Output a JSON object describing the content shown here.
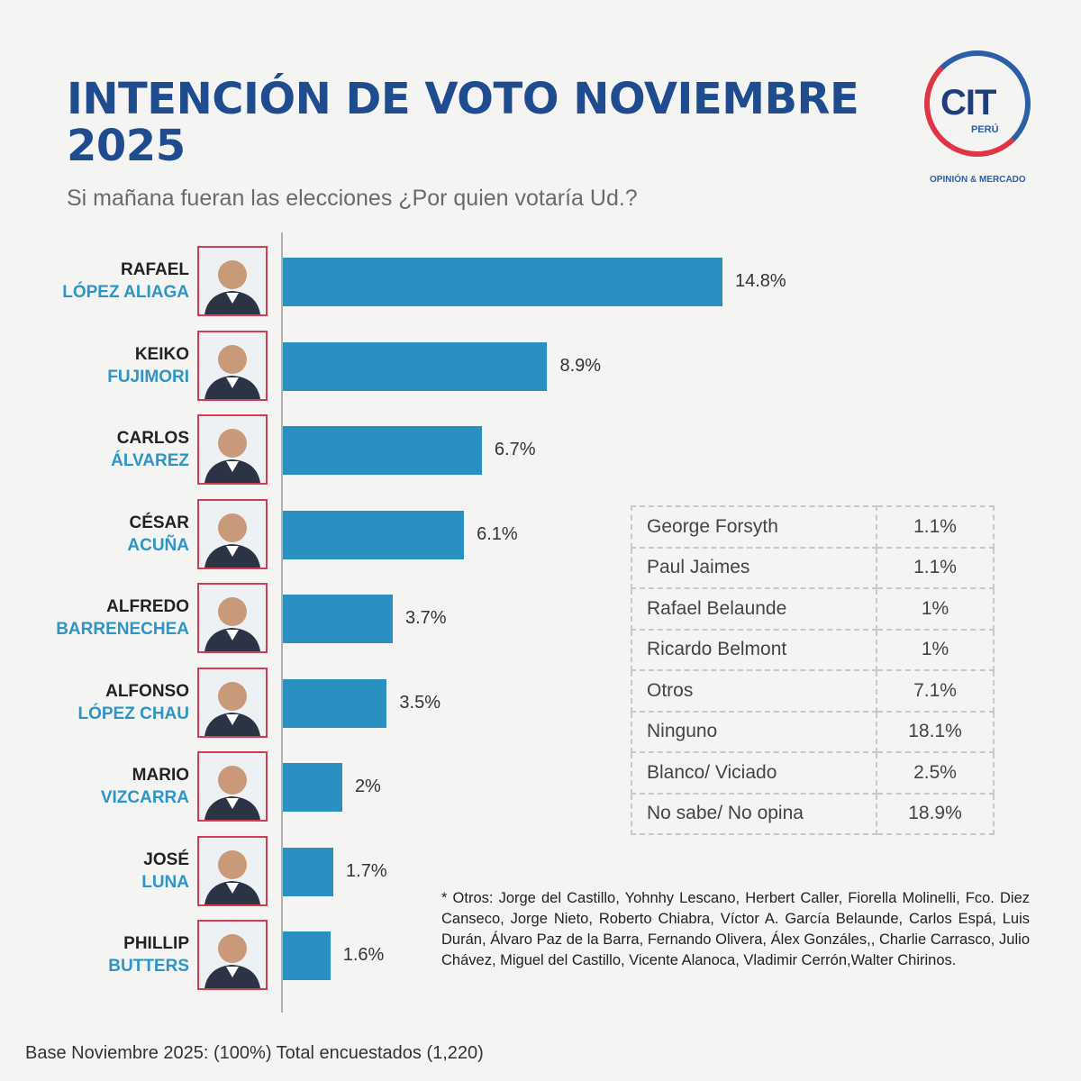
{
  "header": {
    "title": "INTENCIÓN DE VOTO NOVIEMBRE 2025",
    "subtitle": "Si mañana fueran las elecciones ¿Por quien votaría Ud.?"
  },
  "logo": {
    "text": "CIT",
    "country": "PERÚ",
    "tagline": "OPINIÓN & MERCADO"
  },
  "colors": {
    "title": "#1f4b8f",
    "bar": "#2a8fc1",
    "last_name": "#2e95c6",
    "photo_border": "#d83a52"
  },
  "chart_data": {
    "type": "bar",
    "orientation": "horizontal",
    "unit": "%",
    "categories": [
      {
        "first": "RAFAEL",
        "last": "LÓPEZ ALIAGA"
      },
      {
        "first": "KEIKO",
        "last": "FUJIMORI"
      },
      {
        "first": "CARLOS",
        "last": "ÁLVAREZ"
      },
      {
        "first": "CÉSAR",
        "last": "ACUÑA"
      },
      {
        "first": "ALFREDO",
        "last": "BARRENECHEA"
      },
      {
        "first": "ALFONSO",
        "last": "LÓPEZ CHAU"
      },
      {
        "first": "MARIO",
        "last": "VIZCARRA"
      },
      {
        "first": "JOSÉ",
        "last": "LUNA"
      },
      {
        "first": "PHILLIP",
        "last": "BUTTERS"
      }
    ],
    "values": [
      14.8,
      8.9,
      6.7,
      6.1,
      3.7,
      3.5,
      2,
      1.7,
      1.6
    ],
    "value_labels": [
      "14.8%",
      "8.9%",
      "6.7%",
      "6.1%",
      "3.7%",
      "3.5%",
      "2%",
      "1.7%",
      "1.6%"
    ],
    "xlim": [
      0,
      15
    ]
  },
  "others_table": [
    {
      "name": "George Forsyth",
      "value": "1.1%"
    },
    {
      "name": "Paul Jaimes",
      "value": "1.1%"
    },
    {
      "name": "Rafael Belaunde",
      "value": "1%"
    },
    {
      "name": "Ricardo Belmont",
      "value": "1%"
    },
    {
      "name": "Otros",
      "value": "7.1%"
    },
    {
      "name": "Ninguno",
      "value": "18.1%"
    },
    {
      "name": "Blanco/ Viciado",
      "value": "2.5%"
    },
    {
      "name": "No sabe/ No opina",
      "value": "18.9%"
    }
  ],
  "footnote": "* Otros: Jorge del Castillo, Yohnhy Lescano, Herbert Caller, Fiorella Molinelli, Fco. Diez Canseco, Jorge Nieto, Roberto Chiabra, Víctor A. García Belaunde, Carlos Espá, Luis Durán, Álvaro Paz de la Barra, Fernando Olivera, Álex Gonzáles,, Charlie Carrasco, Julio Chávez, Miguel del Castillo, Vicente Alanoca, Vladimir Cerrón,Walter Chirinos.",
  "base": "Base Noviembre 2025: (100%) Total encuestados (1,220)"
}
